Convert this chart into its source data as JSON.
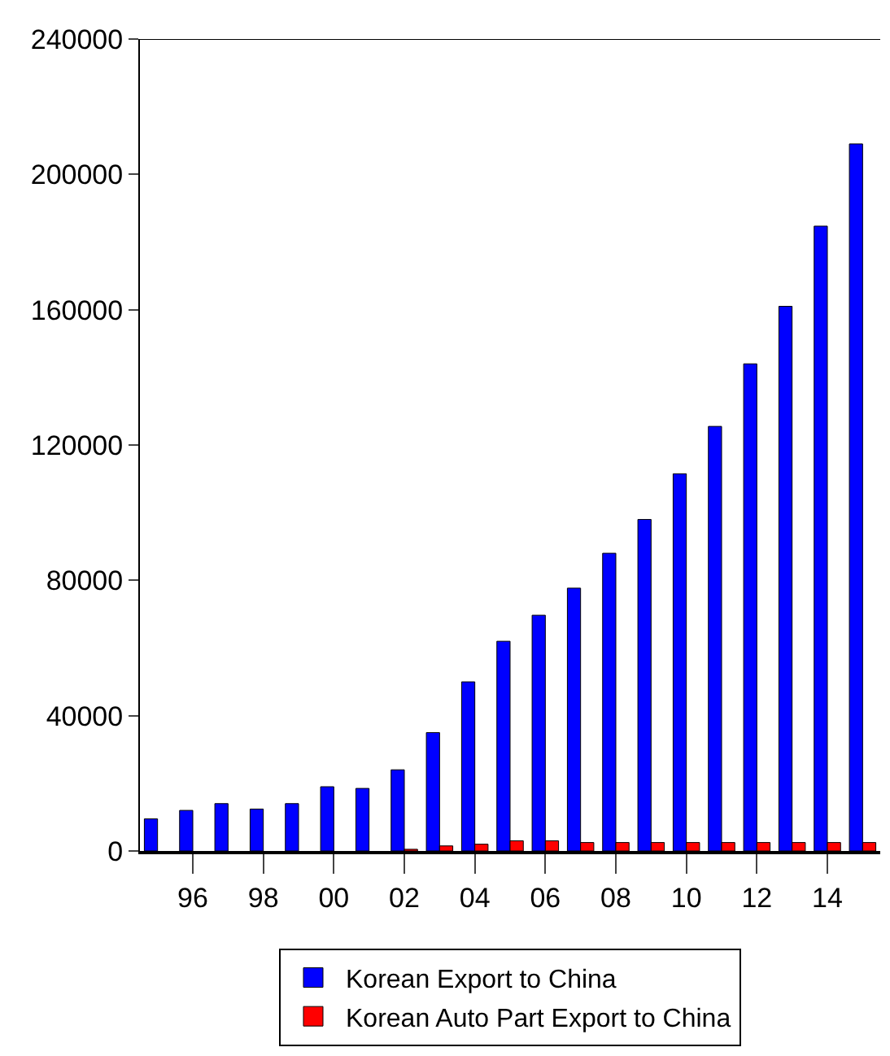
{
  "chart_data": {
    "type": "bar",
    "categories": [
      null,
      "96",
      null,
      "98",
      null,
      "00",
      null,
      "02",
      null,
      "04",
      null,
      "06",
      null,
      "08",
      null,
      "10",
      null,
      "12",
      null,
      "14",
      null
    ],
    "series": [
      {
        "name": "Korean Export to China",
        "color": "#0000ff",
        "values": [
          9500,
          12000,
          14000,
          12400,
          14000,
          19000,
          18500,
          24000,
          35000,
          50000,
          62000,
          69700,
          77700,
          88000,
          98000,
          111500,
          125500,
          144000,
          161000,
          184700,
          209000
        ]
      },
      {
        "name": "Korean Auto Part Export to China",
        "color": "#ff0000",
        "values": [
          null,
          null,
          null,
          null,
          null,
          null,
          null,
          500,
          1500,
          2000,
          3000,
          3000,
          2500,
          2500,
          2500,
          2500,
          2500,
          2500,
          2500,
          2500,
          2500
        ]
      }
    ],
    "ylim": [
      0,
      240000
    ],
    "yticks": [
      0,
      40000,
      80000,
      120000,
      160000,
      200000,
      240000
    ],
    "legend": "bottom"
  }
}
